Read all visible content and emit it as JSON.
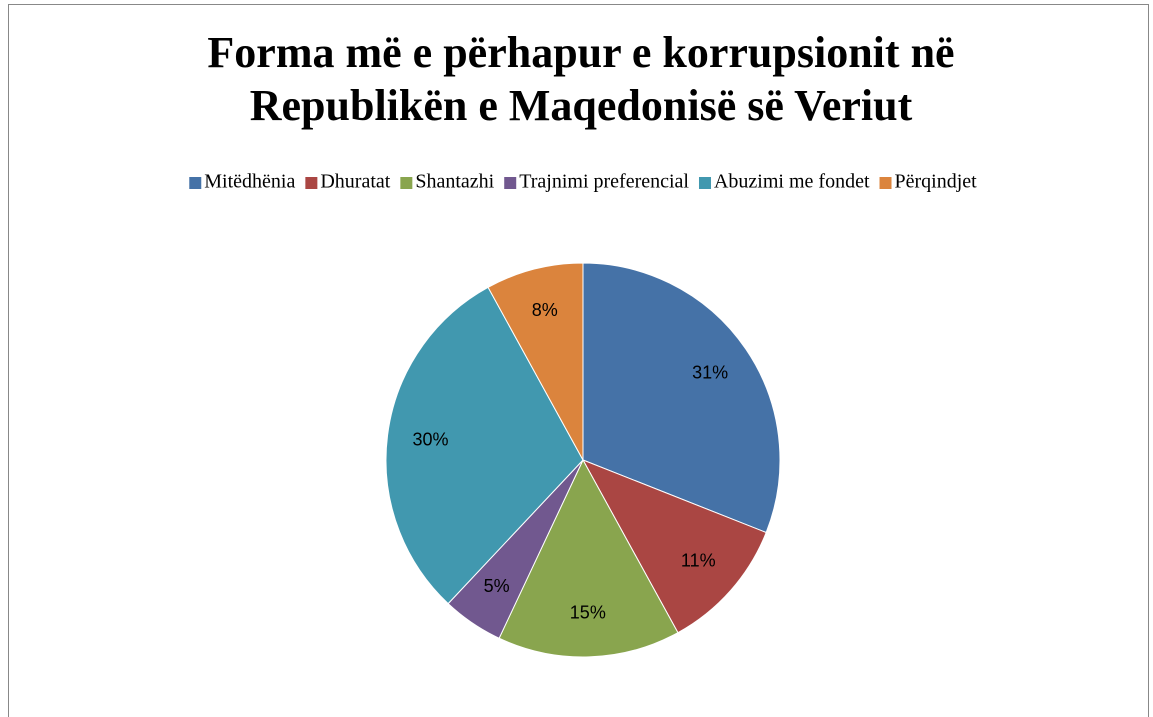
{
  "chart_data": {
    "type": "pie",
    "title": "Forma më e përhapur e korrupsionit në Republikën e Maqedonisë së Veriut",
    "categories": [
      "Mitëdhënia",
      "Dhuratat",
      "Shantazhi",
      "Trajnimi preferencial",
      "Abuzimi me fondet",
      "Përqindjet"
    ],
    "values": [
      31,
      11,
      15,
      5,
      30,
      8
    ],
    "value_labels": [
      "31%",
      "11%",
      "15%",
      "5%",
      "30%",
      "8%"
    ],
    "colors": [
      "#4572a7",
      "#aa4643",
      "#89a54e",
      "#71588f",
      "#4198af",
      "#db843d"
    ],
    "legend": "top"
  }
}
